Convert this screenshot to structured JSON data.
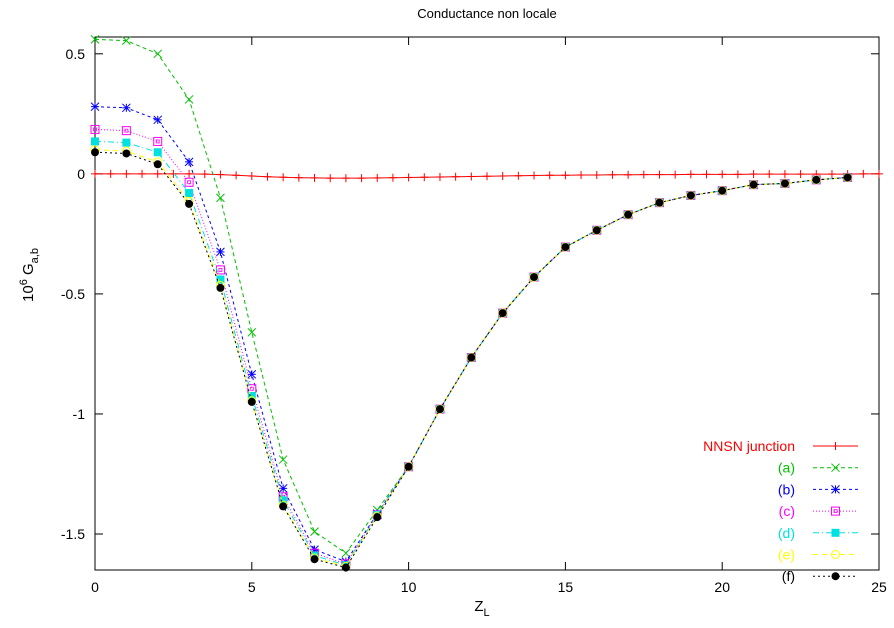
{
  "chart_data": {
    "type": "line",
    "title": "Conductance non locale",
    "xlabel": {
      "base": "Z",
      "sub": "L"
    },
    "ylabel": {
      "prefix": "10",
      "sup": "6",
      "mid": " G",
      "sub": "a,b"
    },
    "xlim": [
      0,
      25
    ],
    "ylim": [
      -1.65,
      0.57
    ],
    "xticks": [
      0,
      5,
      10,
      15,
      20,
      25
    ],
    "xtick_labels": [
      "0",
      "5",
      "10",
      "15",
      "20",
      "25"
    ],
    "yticks": [
      0.5,
      0,
      -0.5,
      -1,
      -1.5
    ],
    "ytick_labels": [
      "0.5",
      "0",
      "-0.5",
      "-1",
      "-1.5"
    ],
    "grid": false,
    "legend_position": "bottom-right",
    "series": [
      {
        "name": "NNSN junction",
        "color": "#ff0000",
        "marker": "plus",
        "dash": "",
        "x": [
          0,
          0.5,
          1,
          1.5,
          2,
          2.5,
          3,
          3.5,
          4,
          4.5,
          5,
          5.5,
          6,
          6.5,
          7,
          7.5,
          8,
          8.5,
          9,
          9.5,
          10,
          10.5,
          11,
          11.5,
          12,
          12.5,
          13,
          13.5,
          14,
          14.5,
          15,
          15.5,
          16,
          16.5,
          17,
          17.5,
          18,
          18.5,
          19,
          19.5,
          20,
          20.5,
          21,
          21.5,
          22,
          22.5,
          23,
          23.5,
          24,
          24.5,
          25
        ],
        "y": [
          0,
          0,
          0,
          0,
          0,
          0,
          0,
          -0.001,
          -0.003,
          -0.006,
          -0.009,
          -0.012,
          -0.014,
          -0.016,
          -0.017,
          -0.018,
          -0.018,
          -0.018,
          -0.017,
          -0.016,
          -0.015,
          -0.014,
          -0.013,
          -0.012,
          -0.011,
          -0.01,
          -0.009,
          -0.008,
          -0.007,
          -0.006,
          -0.006,
          -0.005,
          -0.005,
          -0.004,
          -0.004,
          -0.003,
          -0.003,
          -0.003,
          -0.002,
          -0.002,
          -0.002,
          -0.002,
          -0.001,
          -0.001,
          -0.001,
          -0.001,
          -0.001,
          -0.001,
          -0.001,
          0,
          0
        ]
      },
      {
        "name": "(a)",
        "color": "#00c000",
        "marker": "x",
        "dash": "4,3",
        "x": [
          0,
          1,
          2,
          3,
          4,
          5,
          6,
          7,
          8,
          9,
          10,
          11,
          12,
          13,
          14,
          15,
          16,
          17,
          18,
          19,
          20,
          21,
          22,
          23,
          24
        ],
        "y": [
          0.56,
          0.555,
          0.5,
          0.31,
          -0.1,
          -0.66,
          -1.19,
          -1.49,
          -1.58,
          -1.4,
          -1.22,
          -0.98,
          -0.765,
          -0.58,
          -0.43,
          -0.305,
          -0.235,
          -0.17,
          -0.12,
          -0.09,
          -0.07,
          -0.045,
          -0.04,
          -0.025,
          -0.015
        ]
      },
      {
        "name": "(b)",
        "color": "#0000ff",
        "marker": "star",
        "dash": "3,3",
        "x": [
          0,
          1,
          2,
          3,
          4,
          5,
          6,
          7,
          8,
          9,
          10,
          11,
          12,
          13,
          14,
          15,
          16,
          17,
          18,
          19,
          20,
          21,
          22,
          23,
          24
        ],
        "y": [
          0.28,
          0.275,
          0.225,
          0.05,
          -0.325,
          -0.835,
          -1.31,
          -1.565,
          -1.615,
          -1.415,
          -1.22,
          -0.98,
          -0.765,
          -0.58,
          -0.43,
          -0.305,
          -0.235,
          -0.17,
          -0.12,
          -0.09,
          -0.07,
          -0.045,
          -0.04,
          -0.025,
          -0.015
        ]
      },
      {
        "name": "(c)",
        "color": "#ff00ff",
        "marker": "square-open",
        "dash": "1,2",
        "x": [
          0,
          1,
          2,
          3,
          4,
          5,
          6,
          7,
          8,
          9,
          10,
          11,
          12,
          13,
          14,
          15,
          16,
          17,
          18,
          19,
          20,
          21,
          22,
          23,
          24
        ],
        "y": [
          0.185,
          0.18,
          0.135,
          -0.035,
          -0.4,
          -0.895,
          -1.345,
          -1.58,
          -1.625,
          -1.42,
          -1.22,
          -0.98,
          -0.765,
          -0.58,
          -0.43,
          -0.305,
          -0.235,
          -0.17,
          -0.12,
          -0.09,
          -0.07,
          -0.045,
          -0.04,
          -0.025,
          -0.015
        ]
      },
      {
        "name": "(d)",
        "color": "#00e0e0",
        "marker": "square-filled",
        "dash": "6,3,1,3",
        "x": [
          0,
          1,
          2,
          3,
          4,
          5,
          6,
          7,
          8,
          9,
          10,
          11,
          12,
          13,
          14,
          15,
          16,
          17,
          18,
          19,
          20,
          21,
          22,
          23,
          24
        ],
        "y": [
          0.135,
          0.13,
          0.09,
          -0.08,
          -0.44,
          -0.925,
          -1.36,
          -1.59,
          -1.63,
          -1.42,
          -1.22,
          -0.98,
          -0.765,
          -0.58,
          -0.43,
          -0.305,
          -0.235,
          -0.17,
          -0.12,
          -0.09,
          -0.07,
          -0.045,
          -0.04,
          -0.025,
          -0.015
        ]
      },
      {
        "name": "(e)",
        "color": "#ffff00",
        "marker": "circle-open",
        "dash": "5,4",
        "x": [
          0,
          1,
          2,
          3,
          4,
          5,
          6,
          7,
          8,
          9,
          10,
          11,
          12,
          13,
          14,
          15,
          16,
          17,
          18,
          19,
          20,
          21,
          22,
          23,
          24
        ],
        "y": [
          0.1,
          0.095,
          0.05,
          -0.115,
          -0.465,
          -0.945,
          -1.38,
          -1.6,
          -1.635,
          -1.425,
          -1.22,
          -0.98,
          -0.765,
          -0.58,
          -0.43,
          -0.305,
          -0.235,
          -0.17,
          -0.12,
          -0.09,
          -0.07,
          -0.045,
          -0.04,
          -0.025,
          -0.015
        ]
      },
      {
        "name": "(f)",
        "color": "#000000",
        "marker": "circle-filled",
        "dash": "2,3",
        "x": [
          0,
          1,
          2,
          3,
          4,
          5,
          6,
          7,
          8,
          9,
          10,
          11,
          12,
          13,
          14,
          15,
          16,
          17,
          18,
          19,
          20,
          21,
          22,
          23,
          24
        ],
        "y": [
          0.09,
          0.085,
          0.04,
          -0.125,
          -0.475,
          -0.95,
          -1.385,
          -1.605,
          -1.64,
          -1.43,
          -1.22,
          -0.98,
          -0.765,
          -0.58,
          -0.43,
          -0.305,
          -0.235,
          -0.17,
          -0.12,
          -0.09,
          -0.07,
          -0.045,
          -0.04,
          -0.025,
          -0.015
        ]
      }
    ]
  }
}
